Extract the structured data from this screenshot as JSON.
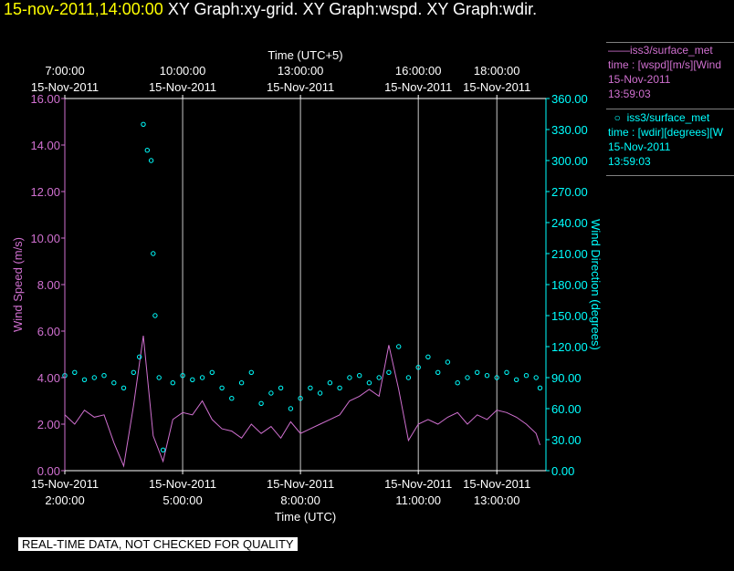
{
  "header": {
    "timestamp": "15-nov-2011,14:00:00",
    "graphs": [
      "XY Graph:xy-grid.",
      "XY Graph:wspd.",
      "XY Graph:wdir."
    ]
  },
  "legend": {
    "wspd": {
      "line1": "iss3/surface_met",
      "line2": "time : [wspd][m/s][Wind",
      "line3": "15-Nov-2011",
      "line4": "13:59:03",
      "color": "#d070d0"
    },
    "wdir": {
      "line1": "iss3/surface_met",
      "line2": "time : [wdir][degrees][W",
      "line3": "15-Nov-2011",
      "line4": "13:59:03",
      "color": "#00ffff"
    }
  },
  "footer": {
    "banner": "REAL-TIME DATA, NOT CHECKED FOR QUALITY"
  },
  "chart_data": {
    "type": "line",
    "x_bottom": {
      "label": "Time (UTC)",
      "ticks": [
        {
          "value": 2,
          "date": "15-Nov-2011",
          "time": "2:00:00"
        },
        {
          "value": 5,
          "date": "15-Nov-2011",
          "time": "5:00:00"
        },
        {
          "value": 8,
          "date": "15-Nov-2011",
          "time": "8:00:00"
        },
        {
          "value": 11,
          "date": "15-Nov-2011",
          "time": "11:00:00"
        },
        {
          "value": 13,
          "date": "15-Nov-2011",
          "time": "13:00:00"
        }
      ],
      "range": [
        2,
        14.25
      ]
    },
    "x_top": {
      "label": "Time (UTC+5)",
      "ticks": [
        {
          "value": 2,
          "time": "7:00:00",
          "date": "15-Nov-2011"
        },
        {
          "value": 5,
          "time": "10:00:00",
          "date": "15-Nov-2011"
        },
        {
          "value": 8,
          "time": "13:00:00",
          "date": "15-Nov-2011"
        },
        {
          "value": 11,
          "time": "16:00:00",
          "date": "15-Nov-2011"
        },
        {
          "value": 13,
          "time": "18:00:00",
          "date": "15-Nov-2011"
        }
      ]
    },
    "y_left": {
      "label": "Wind Speed (m/s)",
      "range": [
        0,
        16
      ],
      "ticks": [
        "0.00",
        "2.00",
        "4.00",
        "6.00",
        "8.00",
        "10.00",
        "12.00",
        "14.00",
        "16.00"
      ]
    },
    "y_right": {
      "label": "Wind Direction (degrees)",
      "range": [
        0,
        360
      ],
      "ticks": [
        "0.00",
        "30.00",
        "60.00",
        "90.00",
        "120.00",
        "150.00",
        "180.00",
        "210.00",
        "240.00",
        "270.00",
        "300.00",
        "330.00",
        "360.00"
      ]
    },
    "grid": true,
    "series": [
      {
        "name": "iss3/surface_met",
        "kind": "line",
        "axis": "left",
        "color": "#d070d0",
        "x": [
          2.0,
          2.25,
          2.5,
          2.75,
          3.0,
          3.25,
          3.5,
          3.75,
          4.0,
          4.25,
          4.5,
          4.75,
          5.0,
          5.25,
          5.5,
          5.75,
          6.0,
          6.25,
          6.5,
          6.75,
          7.0,
          7.25,
          7.5,
          7.75,
          8.0,
          8.25,
          8.5,
          8.75,
          9.0,
          9.25,
          9.5,
          9.75,
          10.0,
          10.25,
          10.5,
          10.75,
          11.0,
          11.25,
          11.5,
          11.75,
          12.0,
          12.25,
          12.5,
          12.75,
          13.0,
          13.25,
          13.5,
          13.75,
          14.0,
          14.1
        ],
        "y": [
          2.4,
          2.0,
          2.6,
          2.3,
          2.4,
          1.2,
          0.2,
          2.8,
          5.8,
          1.5,
          0.4,
          2.2,
          2.5,
          2.4,
          3.0,
          2.2,
          1.8,
          1.7,
          1.4,
          2.0,
          1.6,
          1.9,
          1.4,
          2.1,
          1.6,
          1.8,
          2.0,
          2.2,
          2.4,
          3.0,
          3.2,
          3.5,
          3.2,
          5.4,
          3.5,
          1.3,
          2.0,
          2.2,
          2.0,
          2.3,
          2.5,
          2.0,
          2.4,
          2.2,
          2.6,
          2.5,
          2.3,
          2.0,
          1.6,
          1.1
        ]
      },
      {
        "name": "iss3/surface_met",
        "kind": "scatter",
        "axis": "right",
        "color": "#00ffff",
        "x": [
          2.0,
          2.25,
          2.5,
          2.75,
          3.0,
          3.25,
          3.5,
          3.75,
          3.9,
          4.0,
          4.1,
          4.2,
          4.25,
          4.3,
          4.4,
          4.5,
          4.75,
          5.0,
          5.25,
          5.5,
          5.75,
          6.0,
          6.25,
          6.5,
          6.75,
          7.0,
          7.25,
          7.5,
          7.75,
          8.0,
          8.25,
          8.5,
          8.75,
          9.0,
          9.25,
          9.5,
          9.75,
          10.0,
          10.25,
          10.5,
          10.75,
          11.0,
          11.25,
          11.5,
          11.75,
          12.0,
          12.25,
          12.5,
          12.75,
          13.0,
          13.25,
          13.5,
          13.75,
          14.0,
          14.1
        ],
        "y": [
          92,
          95,
          88,
          90,
          92,
          85,
          80,
          95,
          110,
          335,
          310,
          300,
          210,
          150,
          90,
          20,
          85,
          92,
          88,
          90,
          95,
          80,
          70,
          85,
          95,
          65,
          75,
          80,
          60,
          70,
          80,
          75,
          85,
          80,
          90,
          92,
          85,
          90,
          95,
          120,
          90,
          100,
          110,
          95,
          105,
          85,
          90,
          95,
          92,
          90,
          95,
          88,
          92,
          90,
          80
        ]
      }
    ]
  }
}
